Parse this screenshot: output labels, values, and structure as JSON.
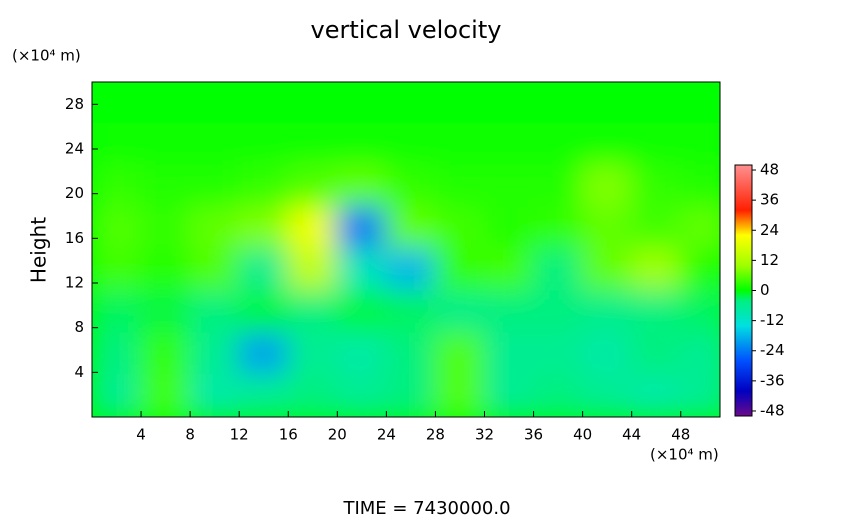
{
  "chart_data": {
    "type": "heatmap",
    "title": "vertical velocity",
    "y_label": "Height",
    "y_unit": "(×10⁴ m)",
    "x_unit": "(×10⁴ m)",
    "footer": "TIME = 7430000.0",
    "xlim": [
      0,
      51.2
    ],
    "ylim": [
      0,
      30
    ],
    "xticks": [
      4,
      8,
      12,
      16,
      20,
      24,
      28,
      32,
      36,
      40,
      44,
      48
    ],
    "yticks": [
      4,
      8,
      12,
      16,
      20,
      24,
      28
    ],
    "x": [
      2,
      6,
      10,
      14,
      18,
      22,
      26,
      30,
      34,
      38,
      42,
      46,
      50
    ],
    "y": [
      28.125,
      24.375,
      20.625,
      16.875,
      13.125,
      9.375,
      5.625,
      1.875
    ],
    "z": [
      [
        0,
        0,
        0,
        0,
        0,
        0,
        0,
        0,
        0,
        0,
        0,
        0,
        0
      ],
      [
        1,
        1,
        1,
        1,
        1,
        1,
        1,
        1,
        1,
        1,
        1,
        1,
        1
      ],
      [
        3,
        2,
        2,
        3,
        5,
        6,
        3,
        2,
        2,
        2,
        8,
        3,
        2
      ],
      [
        5,
        3,
        6,
        8,
        20,
        -24,
        6,
        4,
        2,
        3,
        6,
        4,
        6
      ],
      [
        4,
        2,
        5,
        -6,
        14,
        -10,
        -18,
        3,
        4,
        -4,
        6,
        10,
        2
      ],
      [
        -3,
        -2,
        -4,
        -2,
        -4,
        -2,
        -3,
        -5,
        -4,
        -4,
        -5,
        -4,
        -3
      ],
      [
        -4,
        3,
        -6,
        -20,
        -6,
        -8,
        -4,
        5,
        -6,
        -6,
        -8,
        -4,
        -6
      ],
      [
        -6,
        4,
        -8,
        -6,
        -4,
        -6,
        -4,
        5,
        -6,
        -4,
        -6,
        -8,
        -6
      ]
    ],
    "clim": [
      -50,
      50
    ],
    "cticks": [
      48,
      36,
      24,
      12,
      0,
      -12,
      -24,
      -36,
      -48
    ],
    "colormap": [
      {
        "value": -50,
        "color": "#6a0a8a"
      },
      {
        "value": -40,
        "color": "#0000c0"
      },
      {
        "value": -28,
        "color": "#0050ff"
      },
      {
        "value": -14,
        "color": "#00e0e0"
      },
      {
        "value": -4,
        "color": "#00f080"
      },
      {
        "value": 0,
        "color": "#00ff00"
      },
      {
        "value": 10,
        "color": "#a0ff00"
      },
      {
        "value": 22,
        "color": "#ffff00"
      },
      {
        "value": 32,
        "color": "#ff2000"
      },
      {
        "value": 50,
        "color": "#ff9090"
      }
    ]
  }
}
